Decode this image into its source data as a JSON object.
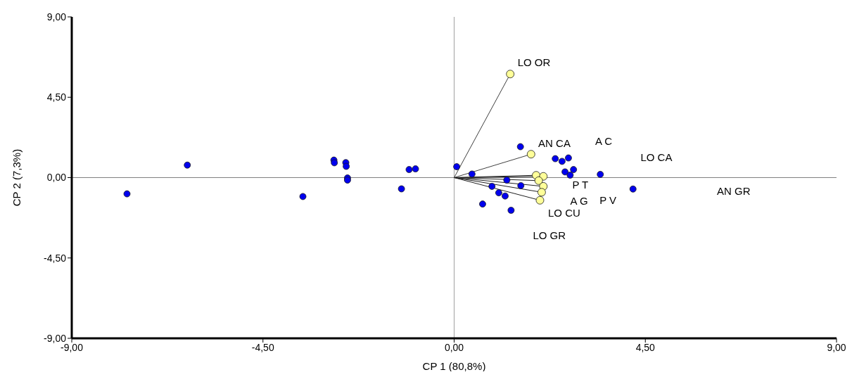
{
  "chart_data": {
    "type": "scatter",
    "xlabel": "CP 1 (80,8%)",
    "ylabel": "CP 2 (7,3%)",
    "xlim": [
      -9,
      9
    ],
    "ylim": [
      -9,
      9
    ],
    "xticks": [
      {
        "value": -9,
        "label": "-9,00"
      },
      {
        "value": -4.5,
        "label": "-4,50"
      },
      {
        "value": 0,
        "label": "0,00"
      },
      {
        "value": 4.5,
        "label": "4,50"
      },
      {
        "value": 9,
        "label": "9,00"
      }
    ],
    "yticks": [
      {
        "value": -9,
        "label": "-9,00"
      },
      {
        "value": -4.5,
        "label": "-4,50"
      },
      {
        "value": 0,
        "label": "0,00"
      },
      {
        "value": 4.5,
        "label": "4,50"
      },
      {
        "value": 9,
        "label": "9,00"
      }
    ],
    "grid": false,
    "legend": false,
    "ref_lines": [
      {
        "axis": "x",
        "value": 0,
        "color": "#a0a0a0"
      },
      {
        "axis": "y",
        "value": 0,
        "color": "#808080"
      }
    ],
    "series": [
      {
        "type": "line",
        "marker": "none",
        "color": "#404040",
        "x": [
          0,
          1.32
        ],
        "values": [
          0,
          5.8
        ]
      },
      {
        "type": "line",
        "marker": "none",
        "color": "#404040",
        "x": [
          0,
          1.81
        ],
        "values": [
          0,
          1.31
        ]
      },
      {
        "type": "line",
        "marker": "none",
        "color": "#202020",
        "x": [
          0,
          1.93
        ],
        "values": [
          0,
          0.13
        ]
      },
      {
        "type": "line",
        "marker": "none",
        "color": "#202020",
        "x": [
          0,
          2.1
        ],
        "values": [
          0,
          0.07
        ]
      },
      {
        "type": "line",
        "marker": "none",
        "color": "#202020",
        "x": [
          0,
          1.99
        ],
        "values": [
          0,
          -0.17
        ]
      },
      {
        "type": "line",
        "marker": "none",
        "color": "#202020",
        "x": [
          0,
          2.1
        ],
        "values": [
          0,
          -0.49
        ]
      },
      {
        "type": "line",
        "marker": "none",
        "color": "#202020",
        "x": [
          0,
          2.06
        ],
        "values": [
          0,
          -0.82
        ]
      },
      {
        "type": "line",
        "marker": "none",
        "color": "#202020",
        "x": [
          0,
          2.02
        ],
        "values": [
          0,
          -1.27
        ]
      },
      {
        "type": "scatter",
        "marker": "circle",
        "color": "#0000ee",
        "x": [
          -7.7,
          -6.28,
          -3.56,
          -2.83,
          -2.82,
          -2.55,
          -2.54,
          -2.51,
          -2.51,
          -1.24,
          -1.06,
          -0.91,
          0.06,
          1.56,
          0.42,
          2.38,
          2.54,
          2.69,
          2.61,
          2.81,
          2.73,
          3.44,
          4.21,
          1.24,
          1.57,
          0.89,
          1.05,
          1.2,
          0.67,
          1.34
        ],
        "values": [
          -0.91,
          0.7,
          -1.06,
          0.98,
          0.83,
          0.84,
          0.63,
          -0.02,
          -0.14,
          -0.63,
          0.45,
          0.49,
          0.61,
          1.73,
          0.2,
          1.06,
          0.91,
          1.1,
          0.32,
          0.45,
          0.14,
          0.18,
          -0.64,
          -0.14,
          -0.45,
          -0.49,
          -0.85,
          -1.03,
          -1.48,
          -1.83
        ]
      },
      {
        "type": "scatter",
        "marker": "circle",
        "color": "#ffff99",
        "x": [
          1.32,
          1.81,
          1.93,
          2.1,
          1.99,
          2.1,
          2.06,
          2.02
        ],
        "values": [
          5.8,
          1.31,
          0.13,
          0.07,
          -0.17,
          -0.49,
          -0.82,
          -1.27
        ]
      }
    ],
    "annotations": [
      "LO OR",
      "AN CA",
      "A C",
      "LO CA",
      "P T",
      "AN GR",
      "P V",
      "A G",
      "LO CU",
      "LO GR"
    ]
  }
}
